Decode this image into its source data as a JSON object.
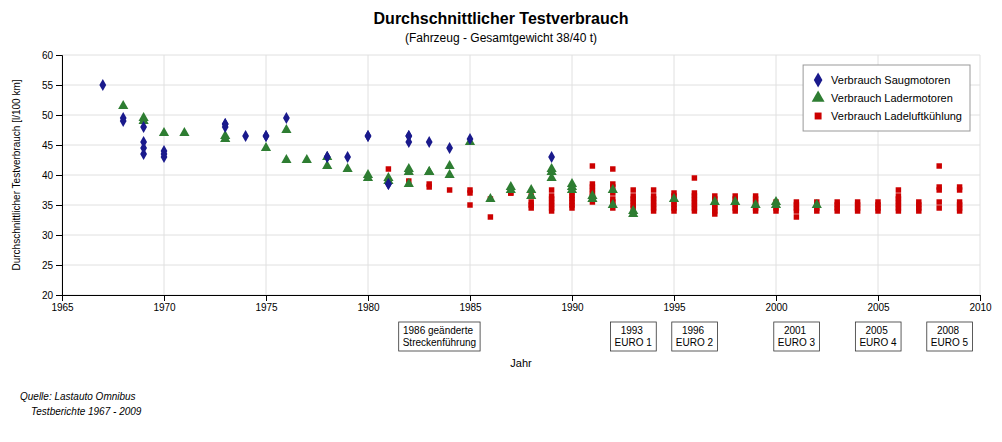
{
  "chart_data": {
    "type": "scatter",
    "title": "Durchschnittlicher Testverbrauch",
    "subtitle": "(Fahrzeug - Gesamtgewicht 38/40 t)",
    "x_label": "Jahr",
    "y_label": "Durchschnittlicher Testverbrauch [l/100 km]",
    "source": [
      "Quelle: Lastauto Omnibus",
      "    Testberichte 1967 - 2009"
    ],
    "xlim": [
      1965,
      2010
    ],
    "ylim": [
      20,
      60
    ],
    "xticks": [
      1965,
      1970,
      1975,
      1980,
      1985,
      1990,
      1995,
      2000,
      2005,
      2010
    ],
    "yticks": [
      20,
      25,
      30,
      35,
      40,
      45,
      50,
      55,
      60
    ],
    "grid": true,
    "legend": "upper right",
    "series": [
      {
        "name": "Verbrauch Saugmotoren",
        "color": "#1a1a8c",
        "marker": "diamond",
        "x": [
          1967,
          1968,
          1968,
          1969,
          1969,
          1969,
          1969,
          1970,
          1970,
          1970,
          1973,
          1973,
          1973,
          1974,
          1975,
          1975,
          1976,
          1978,
          1978,
          1979,
          1980,
          1980,
          1981,
          1981,
          1982,
          1982,
          1982,
          1983,
          1984,
          1985,
          1989
        ],
        "values": [
          55.0,
          49.5,
          49.0,
          48.0,
          45.5,
          44.5,
          43.5,
          44.0,
          43.5,
          43.0,
          48.5,
          48.5,
          48.0,
          46.5,
          46.5,
          46.5,
          49.5,
          43.0,
          43.0,
          43.0,
          46.5,
          46.5,
          38.5,
          38.5,
          46.5,
          46.5,
          45.5,
          45.5,
          44.5,
          46.0,
          43.0
        ]
      },
      {
        "name": "Verbrauch Ladermotoren",
        "color": "#2e7d32",
        "marker": "triangle",
        "x": [
          1968,
          1969,
          1969,
          1970,
          1971,
          1973,
          1973,
          1975,
          1976,
          1976,
          1977,
          1978,
          1978,
          1979,
          1980,
          1980,
          1981,
          1981,
          1982,
          1982,
          1982,
          1983,
          1983,
          1984,
          1984,
          1985,
          1986,
          1987,
          1987,
          1988,
          1988,
          1989,
          1989,
          1989,
          1990,
          1990,
          1990,
          1991,
          1991,
          1992,
          1992,
          1993,
          1993,
          1995,
          1997,
          1998,
          1999,
          2000,
          2000,
          2002
        ],
        "values": [
          51.5,
          49.5,
          49.0,
          47.0,
          47.0,
          46.5,
          46.0,
          44.5,
          47.5,
          42.5,
          42.5,
          43.0,
          41.5,
          41.0,
          40.0,
          39.5,
          39.5,
          39.0,
          41.0,
          40.5,
          38.5,
          40.5,
          40.5,
          41.5,
          40.0,
          45.5,
          36.0,
          38.0,
          37.5,
          37.5,
          36.5,
          41.0,
          40.5,
          39.5,
          38.5,
          38.0,
          37.5,
          36.5,
          36.0,
          37.5,
          35.0,
          34.0,
          33.5,
          36.0,
          35.5,
          35.5,
          35.0,
          35.5,
          35.0,
          35.0
        ]
      },
      {
        "name": "Verbrauch Ladeluftkühlung",
        "color": "#cc0000",
        "marker": "square",
        "x": [
          1981,
          1982,
          1983,
          1983,
          1984,
          1985,
          1985,
          1985,
          1986,
          1986,
          1987,
          1987,
          1988,
          1988,
          1988,
          1988,
          1989,
          1989,
          1989,
          1989,
          1989,
          1989,
          1989,
          1990,
          1990,
          1990,
          1990,
          1990,
          1990,
          1990,
          1991,
          1991,
          1991,
          1991,
          1991,
          1991,
          1991,
          1991,
          1992,
          1992,
          1992,
          1992,
          1992,
          1992,
          1992,
          1992,
          1993,
          1993,
          1993,
          1993,
          1993,
          1993,
          1994,
          1994,
          1994,
          1994,
          1994,
          1994,
          1994,
          1995,
          1995,
          1995,
          1995,
          1995,
          1995,
          1995,
          1996,
          1996,
          1996,
          1996,
          1996,
          1996,
          1996,
          1996,
          1997,
          1997,
          1997,
          1997,
          1997,
          1997,
          1997,
          1998,
          1998,
          1998,
          1998,
          1998,
          1998,
          1999,
          1999,
          1999,
          1999,
          1999,
          1999,
          2000,
          2000,
          2000,
          2000,
          2001,
          2001,
          2001,
          2001,
          2001,
          2002,
          2002,
          2002,
          2002,
          2003,
          2003,
          2003,
          2003,
          2004,
          2004,
          2004,
          2004,
          2005,
          2005,
          2005,
          2005,
          2006,
          2006,
          2006,
          2006,
          2006,
          2006,
          2006,
          2007,
          2007,
          2007,
          2007,
          2008,
          2008,
          2008,
          2008,
          2008,
          2009,
          2009,
          2009,
          2009,
          2009,
          2009
        ],
        "values": [
          41.0,
          39.0,
          38.5,
          38.0,
          37.5,
          37.5,
          37.0,
          35.0,
          36.0,
          33.0,
          37.0,
          37.0,
          36.5,
          35.5,
          35.0,
          34.5,
          37.5,
          36.5,
          36.0,
          35.5,
          35.0,
          34.5,
          34.0,
          37.5,
          37.0,
          36.5,
          36.0,
          35.5,
          35.0,
          34.5,
          41.5,
          38.5,
          38.0,
          37.5,
          37.0,
          36.5,
          36.0,
          35.5,
          41.0,
          38.5,
          38.0,
          37.0,
          36.0,
          35.5,
          35.0,
          34.5,
          37.5,
          36.5,
          36.0,
          35.5,
          35.0,
          34.5,
          37.5,
          36.5,
          36.0,
          35.5,
          35.0,
          34.5,
          34.0,
          37.0,
          36.5,
          36.0,
          35.5,
          35.0,
          34.5,
          34.0,
          39.5,
          37.0,
          36.5,
          36.0,
          35.5,
          35.0,
          34.5,
          34.0,
          36.5,
          36.0,
          35.5,
          35.0,
          34.5,
          34.0,
          33.5,
          36.5,
          36.0,
          35.5,
          35.0,
          34.5,
          34.0,
          36.5,
          36.0,
          35.5,
          35.0,
          34.5,
          34.0,
          35.5,
          35.0,
          34.5,
          34.0,
          35.5,
          35.0,
          34.5,
          34.0,
          33.0,
          35.5,
          35.0,
          34.5,
          34.0,
          35.5,
          35.0,
          34.5,
          34.0,
          35.5,
          35.0,
          34.5,
          34.0,
          35.5,
          35.0,
          34.5,
          34.0,
          37.5,
          36.5,
          36.0,
          35.5,
          35.0,
          34.5,
          34.0,
          35.5,
          35.0,
          34.5,
          34.0,
          41.5,
          38.0,
          37.5,
          35.5,
          34.5,
          38.0,
          37.5,
          35.5,
          35.0,
          34.5,
          34.0
        ]
      }
    ],
    "annotations": [
      {
        "x": 1983.5,
        "text": "1986 geänderte\nStreckenführung"
      },
      {
        "x": 1993.0,
        "text": "1993\nEURO 1"
      },
      {
        "x": 1996.0,
        "text": "1996\nEURO 2"
      },
      {
        "x": 2001.0,
        "text": "2001\nEURO 3"
      },
      {
        "x": 2005.0,
        "text": "2005\nEURO 4"
      },
      {
        "x": 2008.5,
        "text": "2008\nEURO 5"
      }
    ]
  }
}
